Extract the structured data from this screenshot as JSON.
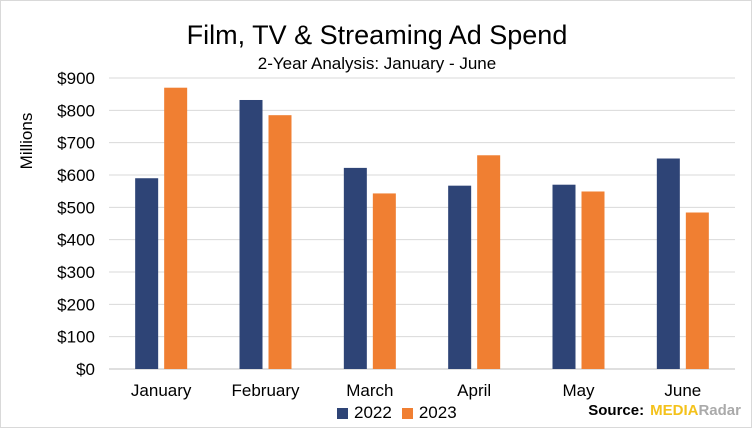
{
  "chart_data": {
    "type": "bar",
    "title": "Film, TV & Streaming Ad Spend",
    "subtitle": "2-Year Analysis: January - June",
    "xlabel": "",
    "ylabel": "Millions",
    "categories": [
      "January",
      "February",
      "March",
      "April",
      "May",
      "June"
    ],
    "series": [
      {
        "name": "2022",
        "color": "#2e4476",
        "values": [
          590,
          832,
          622,
          567,
          570,
          651
        ]
      },
      {
        "name": "2023",
        "color": "#f07f32",
        "values": [
          870,
          785,
          543,
          661,
          549,
          484
        ]
      }
    ],
    "ylim": [
      0,
      900
    ],
    "yticks": [
      0,
      100,
      200,
      300,
      400,
      500,
      600,
      700,
      800,
      900
    ],
    "ytick_labels": [
      "$0",
      "$100",
      "$200",
      "$300",
      "$400",
      "$500",
      "$600",
      "$700",
      "$800",
      "$900"
    ],
    "grid": true,
    "legend_position": "bottom"
  },
  "source": {
    "label": "Source:",
    "brand_part1": "MEDIA",
    "brand_part2": "Radar"
  }
}
